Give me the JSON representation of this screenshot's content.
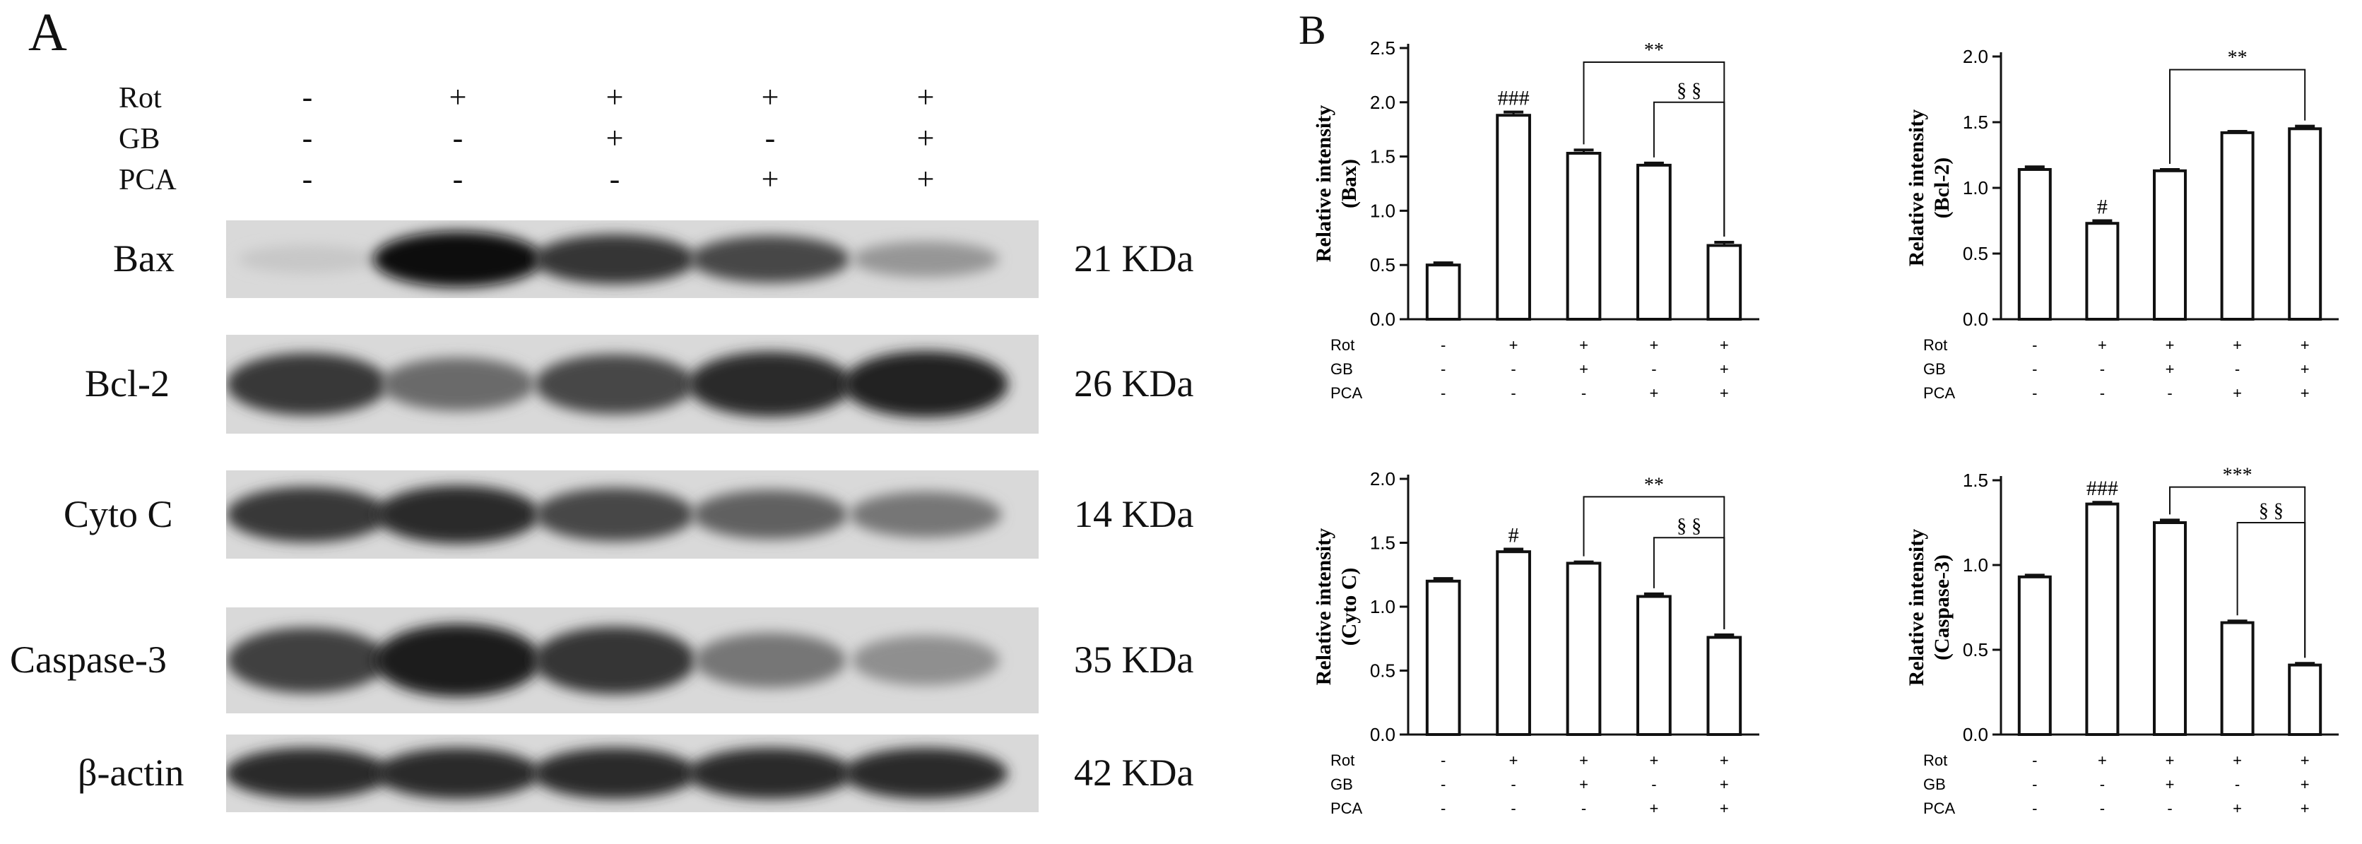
{
  "panels": {
    "a": "A",
    "b": "B"
  },
  "blot": {
    "treatment_names": [
      "Rot",
      "GB",
      "PCA"
    ],
    "lanes": [
      {
        "rot": "-",
        "gb": "-",
        "pca": "-"
      },
      {
        "rot": "+",
        "gb": "-",
        "pca": "-"
      },
      {
        "rot": "+",
        "gb": "+",
        "pca": "-"
      },
      {
        "rot": "+",
        "gb": "-",
        "pca": "+"
      },
      {
        "rot": "+",
        "gb": "+",
        "pca": "+"
      }
    ],
    "rows": [
      {
        "protein": "Bax",
        "kda": "21 KDa",
        "band_intensity": [
          0.12,
          1.0,
          0.8,
          0.72,
          0.35
        ]
      },
      {
        "protein": "Bcl-2",
        "kda": "26 KDa",
        "band_intensity": [
          0.78,
          0.55,
          0.72,
          0.85,
          0.88
        ]
      },
      {
        "protein": "Cyto C",
        "kda": "14 KDa",
        "band_intensity": [
          0.78,
          0.85,
          0.72,
          0.6,
          0.5
        ]
      },
      {
        "protein": "Caspase-3",
        "kda": "35 KDa",
        "band_intensity": [
          0.75,
          0.92,
          0.8,
          0.5,
          0.38
        ]
      },
      {
        "protein": "β-actin",
        "kda": "42 KDa",
        "band_intensity": [
          0.85,
          0.85,
          0.85,
          0.85,
          0.85
        ]
      }
    ]
  },
  "chart_data": [
    {
      "type": "bar",
      "ylabel_lines": [
        "Relative intensity",
        "(Bax)"
      ],
      "ylim": [
        0,
        2.5
      ],
      "yticks": [
        0.0,
        0.5,
        1.0,
        1.5,
        2.0,
        2.5
      ],
      "ytick_labels": [
        "0.0",
        "0.5",
        "1.0",
        "1.5",
        "2.0",
        "2.5"
      ],
      "values": [
        0.5,
        1.88,
        1.53,
        1.42,
        0.68
      ],
      "errors": [
        0.02,
        0.03,
        0.03,
        0.02,
        0.03
      ],
      "bar_marks": [
        "",
        "###",
        "",
        "",
        ""
      ],
      "brackets": [
        {
          "from": 2,
          "to": 4,
          "level": 2.37,
          "label": "**"
        },
        {
          "from": 3,
          "to": 4,
          "level": 2.0,
          "label": "§ §"
        }
      ],
      "treatment_names": [
        "Rot",
        "GB",
        "PCA"
      ],
      "treatment_signs": [
        [
          "-",
          "+",
          "+",
          "+",
          "+"
        ],
        [
          "-",
          "-",
          "+",
          "-",
          "+"
        ],
        [
          "-",
          "-",
          "-",
          "+",
          "+"
        ]
      ]
    },
    {
      "type": "bar",
      "ylabel_lines": [
        "Relative intensity",
        "(Bcl-2)"
      ],
      "ylim": [
        0,
        2.0
      ],
      "yticks": [
        0.0,
        0.5,
        1.0,
        1.5,
        2.0
      ],
      "ytick_labels": [
        "0.0",
        "0.5",
        "1.0",
        "1.5",
        "2.0"
      ],
      "values": [
        1.14,
        0.73,
        1.13,
        1.42,
        1.45
      ],
      "errors": [
        0.02,
        0.02,
        0.01,
        0.01,
        0.02
      ],
      "bar_marks": [
        "",
        "#",
        "",
        "",
        ""
      ],
      "brackets": [
        {
          "from": 2,
          "to": 4,
          "level": 1.9,
          "label": "**"
        }
      ],
      "treatment_names": [
        "Rot",
        "GB",
        "PCA"
      ],
      "treatment_signs": [
        [
          "-",
          "+",
          "+",
          "+",
          "+"
        ],
        [
          "-",
          "-",
          "+",
          "-",
          "+"
        ],
        [
          "-",
          "-",
          "-",
          "+",
          "+"
        ]
      ]
    },
    {
      "type": "bar",
      "ylabel_lines": [
        "Relative intensity",
        "(Cyto C)"
      ],
      "ylim": [
        0,
        2.0
      ],
      "yticks": [
        0.0,
        0.5,
        1.0,
        1.5,
        2.0
      ],
      "ytick_labels": [
        "0.0",
        "0.5",
        "1.0",
        "1.5",
        "2.0"
      ],
      "values": [
        1.2,
        1.43,
        1.34,
        1.08,
        0.76
      ],
      "errors": [
        0.02,
        0.02,
        0.01,
        0.02,
        0.02
      ],
      "bar_marks": [
        "",
        "#",
        "",
        "",
        ""
      ],
      "brackets": [
        {
          "from": 2,
          "to": 4,
          "level": 1.86,
          "label": "**"
        },
        {
          "from": 3,
          "to": 4,
          "level": 1.54,
          "label": "§ §"
        }
      ],
      "treatment_names": [
        "Rot",
        "GB",
        "PCA"
      ],
      "treatment_signs": [
        [
          "-",
          "+",
          "+",
          "+",
          "+"
        ],
        [
          "-",
          "-",
          "+",
          "-",
          "+"
        ],
        [
          "-",
          "-",
          "-",
          "+",
          "+"
        ]
      ]
    },
    {
      "type": "bar",
      "ylabel_lines": [
        "Relative intensity",
        "(Caspase-3)"
      ],
      "ylim": [
        0,
        1.5
      ],
      "yticks": [
        0.0,
        0.5,
        1.0,
        1.5
      ],
      "ytick_labels": [
        "0.0",
        "0.5",
        "1.0",
        "1.5"
      ],
      "values": [
        0.93,
        1.36,
        1.25,
        0.66,
        0.41
      ],
      "errors": [
        0.01,
        0.01,
        0.015,
        0.01,
        0.01
      ],
      "bar_marks": [
        "",
        "###",
        "",
        "",
        ""
      ],
      "brackets": [
        {
          "from": 2,
          "to": 4,
          "level": 1.46,
          "label": "***"
        },
        {
          "from": 3,
          "to": 4,
          "level": 1.25,
          "label": "§ §"
        }
      ],
      "treatment_names": [
        "Rot",
        "GB",
        "PCA"
      ],
      "treatment_signs": [
        [
          "-",
          "+",
          "+",
          "+",
          "+"
        ],
        [
          "-",
          "-",
          "+",
          "-",
          "+"
        ],
        [
          "-",
          "-",
          "-",
          "+",
          "+"
        ]
      ]
    }
  ]
}
